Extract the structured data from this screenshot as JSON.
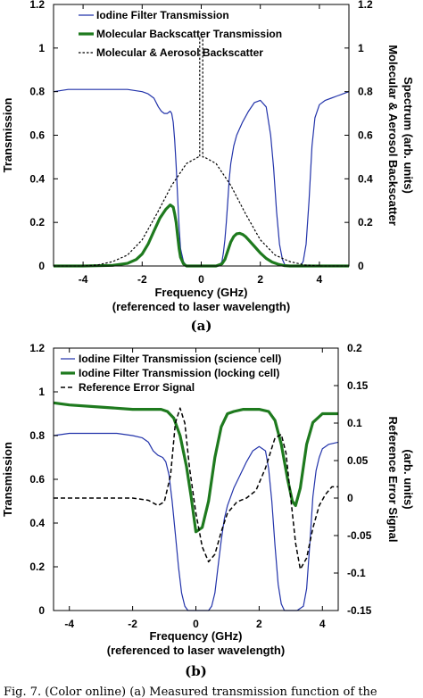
{
  "caption": "Fig. 7. (Color online) (a) Measured transmission function of the",
  "chart_data": [
    {
      "panel_label": "(a)",
      "type": "line",
      "xlabel": "Frequency (GHz)",
      "xlabel2": "(referenced to laser wavelength)",
      "ylabel": "Transmission",
      "y2label": "Molecular & Aerosol Backscatter",
      "y2label2": "Spectrum (arb. units)",
      "xlim": [
        -5,
        5
      ],
      "ylim": [
        0,
        1.2
      ],
      "y2lim": [
        0,
        1.2
      ],
      "xticks": [
        -4,
        -2,
        0,
        2,
        4
      ],
      "yticks": [
        0,
        0.2,
        0.4,
        0.6,
        0.8,
        1,
        1.2
      ],
      "y2ticks": [
        0,
        0.2,
        0.4,
        0.6,
        0.8,
        1,
        1.2
      ],
      "grid": false,
      "legend_position": "top-right",
      "series": [
        {
          "name": "Iodine Filter Transmission",
          "color": "#2233aa",
          "width": 1.2,
          "dash": "",
          "axis": "left",
          "x": [
            -5,
            -4.5,
            -4,
            -3.5,
            -3,
            -2.5,
            -2,
            -1.8,
            -1.6,
            -1.45,
            -1.35,
            -1.25,
            -1.15,
            -1.05,
            -1.0,
            -0.95,
            -0.9,
            -0.85,
            -0.8,
            -0.75,
            -0.7,
            -0.6,
            -0.5,
            -0.4,
            0,
            0.4,
            0.6,
            0.7,
            0.75,
            0.8,
            0.85,
            0.9,
            0.95,
            1.0,
            1.1,
            1.2,
            1.4,
            1.6,
            1.8,
            2.0,
            2.2,
            2.35,
            2.45,
            2.55,
            2.65,
            2.75,
            2.85,
            3.0,
            3.2,
            3.35,
            3.45,
            3.55,
            3.65,
            3.75,
            3.85,
            4.0,
            4.2,
            4.4,
            4.6,
            4.8,
            5.0
          ],
          "values": [
            0.8,
            0.81,
            0.81,
            0.81,
            0.81,
            0.81,
            0.8,
            0.79,
            0.77,
            0.73,
            0.71,
            0.7,
            0.7,
            0.71,
            0.7,
            0.66,
            0.58,
            0.46,
            0.32,
            0.18,
            0.08,
            0.02,
            0.0,
            0.0,
            0.0,
            0.0,
            0.0,
            0.02,
            0.06,
            0.12,
            0.2,
            0.3,
            0.4,
            0.47,
            0.55,
            0.6,
            0.66,
            0.71,
            0.75,
            0.76,
            0.73,
            0.6,
            0.45,
            0.25,
            0.1,
            0.03,
            0.0,
            0.0,
            0.0,
            0.0,
            0.02,
            0.1,
            0.3,
            0.55,
            0.68,
            0.74,
            0.76,
            0.77,
            0.78,
            0.79,
            0.8
          ]
        },
        {
          "name": "Molecular Backscatter Transmission",
          "color": "#1e7a1e",
          "width": 3.2,
          "dash": "",
          "axis": "left",
          "x": [
            -5,
            -4,
            -3,
            -2.5,
            -2.2,
            -2.0,
            -1.8,
            -1.6,
            -1.4,
            -1.2,
            -1.05,
            -0.95,
            -0.9,
            -0.85,
            -0.8,
            -0.75,
            -0.7,
            -0.6,
            -0.5,
            0,
            0.5,
            0.7,
            0.8,
            0.9,
            1.0,
            1.1,
            1.2,
            1.3,
            1.4,
            1.5,
            1.6,
            1.8,
            2.0,
            2.2,
            2.4,
            2.6,
            2.8,
            3.0,
            5.0
          ],
          "values": [
            0,
            0,
            0.003,
            0.012,
            0.03,
            0.055,
            0.1,
            0.16,
            0.22,
            0.26,
            0.28,
            0.27,
            0.24,
            0.2,
            0.14,
            0.08,
            0.04,
            0.01,
            0,
            0,
            0,
            0.01,
            0.03,
            0.07,
            0.11,
            0.135,
            0.148,
            0.15,
            0.145,
            0.135,
            0.12,
            0.09,
            0.06,
            0.035,
            0.018,
            0.008,
            0.002,
            0,
            0
          ]
        },
        {
          "name": "Molecular & Aerosol Backscatter",
          "color": "#000000",
          "width": 1.2,
          "dash": "2.5,2",
          "axis": "right",
          "x": [
            -5,
            -4,
            -3.5,
            -3,
            -2.5,
            -2,
            -1.5,
            -1,
            -0.5,
            -0.1,
            -0.05,
            -0.05,
            0,
            0.05,
            0.05,
            0.1,
            0.5,
            1,
            1.5,
            2,
            2.5,
            3,
            3.5,
            4,
            5
          ],
          "values": [
            0,
            0,
            0.005,
            0.02,
            0.05,
            0.12,
            0.24,
            0.37,
            0.47,
            0.5,
            0.5,
            1.05,
            1.05,
            1.05,
            0.5,
            0.5,
            0.47,
            0.37,
            0.24,
            0.12,
            0.05,
            0.02,
            0.005,
            0,
            0
          ]
        }
      ]
    },
    {
      "panel_label": "(b)",
      "type": "line",
      "xlabel": "Frequency (GHz)",
      "xlabel2": "(referenced to laser wavelength)",
      "ylabel": "Transmission",
      "y2label": "Reference Error Signal",
      "y2label2": "(arb. units)",
      "xlim": [
        -4.5,
        4.5
      ],
      "ylim": [
        0,
        1.2
      ],
      "y2lim": [
        -0.15,
        0.2
      ],
      "xticks": [
        -4,
        -2,
        0,
        2,
        4
      ],
      "yticks": [
        0,
        0.2,
        0.4,
        0.6,
        0.8,
        1,
        1.2
      ],
      "y2ticks": [
        -0.15,
        -0.1,
        -0.05,
        0,
        0.05,
        0.1,
        0.15,
        0.2
      ],
      "grid": false,
      "legend_position": "top-right",
      "series": [
        {
          "name": "Iodine Filter Transmission (science cell)",
          "color": "#2233aa",
          "width": 1.2,
          "dash": "",
          "axis": "left",
          "x": [
            -4.5,
            -4,
            -3.5,
            -3,
            -2.5,
            -2,
            -1.7,
            -1.5,
            -1.35,
            -1.2,
            -1.05,
            -0.95,
            -0.85,
            -0.75,
            -0.65,
            -0.55,
            -0.45,
            -0.35,
            -0.25,
            0,
            0.4,
            0.5,
            0.6,
            0.7,
            0.8,
            0.9,
            1.0,
            1.2,
            1.4,
            1.6,
            1.8,
            2.0,
            2.2,
            2.3,
            2.4,
            2.5,
            2.6,
            2.7,
            2.8,
            3.0,
            3.2,
            3.4,
            3.5,
            3.6,
            3.7,
            3.8,
            3.9,
            4.0,
            4.2,
            4.5
          ],
          "values": [
            0.8,
            0.81,
            0.81,
            0.81,
            0.81,
            0.8,
            0.79,
            0.77,
            0.73,
            0.71,
            0.7,
            0.68,
            0.62,
            0.5,
            0.35,
            0.2,
            0.08,
            0.02,
            0.0,
            0.0,
            0.0,
            0.02,
            0.08,
            0.2,
            0.32,
            0.42,
            0.48,
            0.56,
            0.62,
            0.68,
            0.73,
            0.75,
            0.73,
            0.65,
            0.5,
            0.3,
            0.12,
            0.03,
            0.0,
            0.0,
            0.0,
            0.02,
            0.1,
            0.3,
            0.52,
            0.64,
            0.7,
            0.74,
            0.76,
            0.77
          ]
        },
        {
          "name": "Iodine Filter Transmission (locking cell)",
          "color": "#1e7a1e",
          "width": 3.2,
          "dash": "",
          "axis": "left",
          "x": [
            -4.5,
            -4,
            -3,
            -2,
            -1.5,
            -1.1,
            -0.9,
            -0.7,
            -0.5,
            -0.3,
            -0.15,
            0,
            0.2,
            0.4,
            0.6,
            0.8,
            1.0,
            1.2,
            1.5,
            2.0,
            2.3,
            2.5,
            2.7,
            2.9,
            3.05,
            3.15,
            3.3,
            3.5,
            3.7,
            4.0,
            4.5
          ],
          "values": [
            0.95,
            0.94,
            0.93,
            0.92,
            0.92,
            0.92,
            0.91,
            0.88,
            0.8,
            0.66,
            0.52,
            0.36,
            0.38,
            0.5,
            0.7,
            0.84,
            0.9,
            0.91,
            0.92,
            0.92,
            0.91,
            0.87,
            0.76,
            0.6,
            0.5,
            0.48,
            0.56,
            0.76,
            0.86,
            0.9,
            0.9
          ]
        },
        {
          "name": "Reference Error Signal",
          "color": "#000000",
          "width": 1.5,
          "dash": "5,3",
          "axis": "right",
          "x": [
            -4.5,
            -3,
            -2,
            -1.5,
            -1.2,
            -1.0,
            -0.8,
            -0.65,
            -0.5,
            -0.35,
            -0.2,
            0,
            0.2,
            0.4,
            0.6,
            0.8,
            1.0,
            1.3,
            1.6,
            1.9,
            2.2,
            2.5,
            2.7,
            2.85,
            3.0,
            3.15,
            3.3,
            3.5,
            3.7,
            3.9,
            4.1,
            4.3,
            4.5
          ],
          "values": [
            0.0,
            0.0,
            0.0,
            -0.003,
            -0.01,
            -0.005,
            0.03,
            0.1,
            0.12,
            0.1,
            0.04,
            -0.02,
            -0.065,
            -0.085,
            -0.075,
            -0.045,
            -0.02,
            -0.005,
            0.0,
            0.01,
            0.04,
            0.08,
            0.085,
            0.06,
            0.0,
            -0.06,
            -0.095,
            -0.08,
            -0.04,
            -0.01,
            0.005,
            0.015,
            0.015
          ]
        }
      ]
    }
  ]
}
